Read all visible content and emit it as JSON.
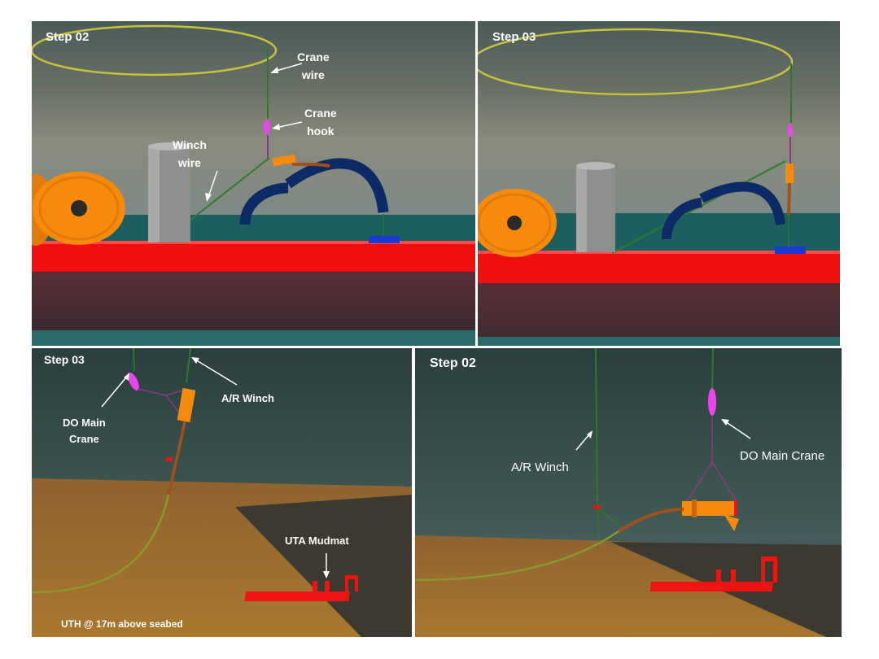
{
  "panels": {
    "top_left": {
      "step": "Step 02",
      "labels": {
        "crane_wire": [
          "Crane",
          "wire"
        ],
        "crane_hook": [
          "Crane",
          "hook"
        ],
        "winch_wire": [
          "Winch",
          "wire"
        ]
      }
    },
    "top_right": {
      "step": "Step 03"
    },
    "bottom_left": {
      "step": "Step 03",
      "labels": {
        "do_main_crane": [
          "DO Main",
          "Crane"
        ],
        "ar_winch": "A/R Winch",
        "uta_mudmat": "UTA Mudmat",
        "uth_height": "UTH @ 17m above seabed"
      }
    },
    "bottom_right": {
      "step": "Step 02",
      "labels": {
        "ar_winch": "A/R Winch",
        "do_main_crane": "DO Main Crane"
      }
    }
  },
  "colors": {
    "deck_red": "#f01010",
    "sky_top": "#4e5e5c",
    "sky_mid": "#7d8478",
    "sea": "#1d5e60",
    "reel_orange": "#f58a0c",
    "arch_blue": "#0c2a66",
    "hook_magenta": "#ee44ee",
    "wire_green": "#2d7a2a",
    "seabed_tan": "#9a6a2a",
    "mudmat_red": "#ee1414",
    "label_white": "#ffffff"
  }
}
